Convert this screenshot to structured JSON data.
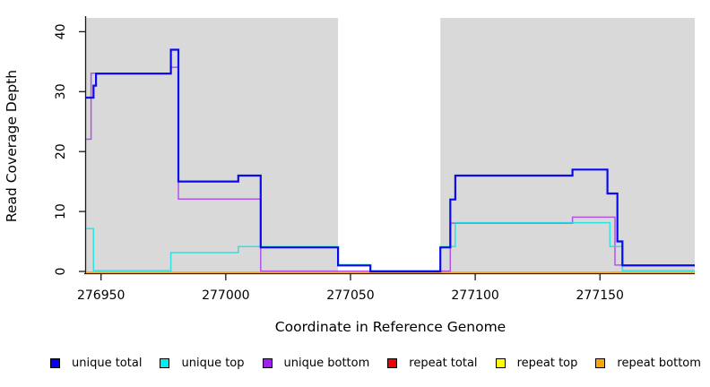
{
  "figure": {
    "background": "#ffffff",
    "panel_background": "#d9d9d9",
    "axis_color": "#1a1a1a",
    "tick_label_color": "#000000"
  },
  "chart_data": {
    "type": "line",
    "subtype": "step",
    "title": "",
    "xlabel": "Coordinate in Reference Genome",
    "ylabel": "Read Coverage Depth",
    "xlim": [
      276944,
      277188
    ],
    "ylim": [
      0,
      42.3
    ],
    "x_ticks": [
      "276950",
      "277000",
      "277050",
      "277100",
      "277150"
    ],
    "y_ticks": [
      "0",
      "10",
      "20",
      "30",
      "40"
    ],
    "grid": false,
    "legend_position": "bottom",
    "highlight_band": {
      "x0": 277045,
      "x1": 277086,
      "color": "#ffffff"
    },
    "draw_order": [
      3,
      4,
      5,
      2,
      1,
      0
    ],
    "series": [
      {
        "name": "unique total",
        "color": "#0000ee",
        "width": 2.2,
        "opacity": 0.95,
        "offset": 0,
        "steps": [
          [
            276944,
            29
          ],
          [
            276947,
            31
          ],
          [
            276948,
            33
          ],
          [
            276978,
            37
          ],
          [
            276981,
            15
          ],
          [
            277005,
            16
          ],
          [
            277014,
            4
          ],
          [
            277045,
            1
          ],
          [
            277058,
            0
          ],
          [
            277086,
            4
          ],
          [
            277090,
            12
          ],
          [
            277092,
            16
          ],
          [
            277139,
            17
          ],
          [
            277153,
            13
          ],
          [
            277157,
            5
          ],
          [
            277159,
            1
          ]
        ]
      },
      {
        "name": "unique top",
        "color": "#00e5e5",
        "width": 1.5,
        "opacity": 0.8,
        "offset": -0.9,
        "steps": [
          [
            276944,
            7
          ],
          [
            276947,
            0
          ],
          [
            276978,
            3
          ],
          [
            277005,
            4
          ],
          [
            277045,
            1
          ],
          [
            277058,
            0
          ],
          [
            277086,
            4
          ],
          [
            277092,
            8
          ],
          [
            277154,
            4
          ],
          [
            277159,
            0
          ]
        ]
      },
      {
        "name": "unique bottom",
        "color": "#a020f0",
        "width": 1.5,
        "opacity": 0.72,
        "offset": -0.4,
        "steps": [
          [
            276944,
            22
          ],
          [
            276946,
            33
          ],
          [
            276978,
            34
          ],
          [
            276981,
            12
          ],
          [
            277014,
            0
          ],
          [
            277090,
            8
          ],
          [
            277139,
            9
          ],
          [
            277156,
            1
          ]
        ]
      },
      {
        "name": "repeat total",
        "color": "#ee0000",
        "width": 1.3,
        "opacity": 0.85,
        "offset": 0.6,
        "steps": [
          [
            276944,
            0
          ]
        ]
      },
      {
        "name": "repeat top",
        "color": "#ffff00",
        "width": 1.3,
        "opacity": 0.9,
        "offset": 0.6,
        "steps": [
          [
            276944,
            0
          ]
        ]
      },
      {
        "name": "repeat bottom",
        "color": "#ffa500",
        "width": 1.8,
        "opacity": 0.95,
        "offset": 1.0,
        "steps": [
          [
            276944,
            0
          ]
        ]
      }
    ]
  },
  "legend": {
    "items": [
      {
        "label": "unique total",
        "color": "#0000ee"
      },
      {
        "label": "unique top",
        "color": "#00eeee"
      },
      {
        "label": "unique bottom",
        "color": "#a020f0"
      },
      {
        "label": "repeat total",
        "color": "#ee0000"
      },
      {
        "label": "repeat top",
        "color": "#ffff00"
      },
      {
        "label": "repeat bottom",
        "color": "#ffa500"
      }
    ]
  }
}
